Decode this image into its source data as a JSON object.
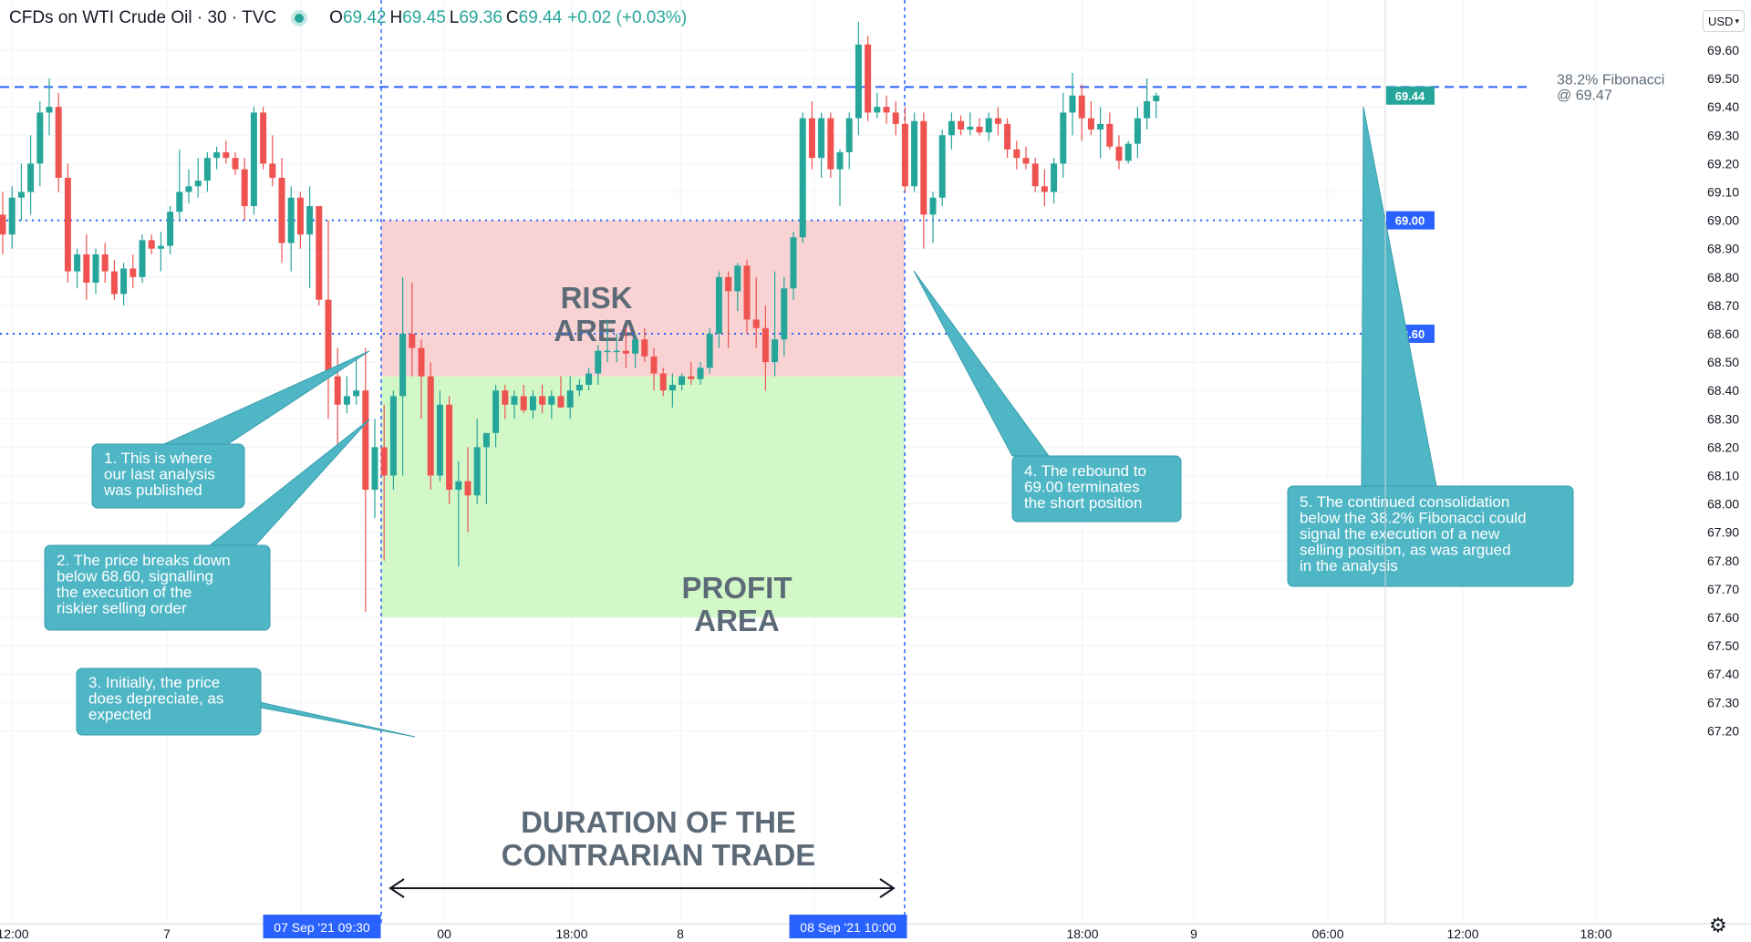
{
  "header": {
    "symbol_title": "CFDs on WTI Crude Oil · 30 · TVC",
    "open_label": "O",
    "open": "69.42",
    "high_label": "H",
    "high": "69.45",
    "low_label": "L",
    "low": "69.36",
    "close_label": "C",
    "close": "69.44",
    "change": "+0.02 (+0.03%)"
  },
  "currency_button": "USD",
  "settings_icon": "gear-icon",
  "colors": {
    "up": "#26a69a",
    "down": "#ef5350",
    "line": "#2962ff",
    "callout": "#4fb6c5",
    "risk": "#f9d3d3",
    "profit": "#d2f8c8",
    "zone_text": "#5d6b78"
  },
  "chart_data": {
    "type": "candlestick",
    "ylim": [
      67.1,
      69.75
    ],
    "y_ticks": [
      69.6,
      69.5,
      69.4,
      69.3,
      69.2,
      69.1,
      69.0,
      68.9,
      68.8,
      68.7,
      68.6,
      68.5,
      68.4,
      68.3,
      68.2,
      68.1,
      68.0,
      67.9,
      67.8,
      67.7,
      67.6,
      67.5,
      67.4,
      67.3,
      67.2
    ],
    "x_ticks": [
      "12:00",
      "7",
      "06:00",
      "07 Sep '21  09:30",
      "00",
      "18:00",
      "8",
      "06:00",
      "08 Sep '21  10:00",
      "18:00",
      "9",
      "06:00",
      "12:00",
      "18:00"
    ],
    "candles": [
      [
        69.02,
        69.1,
        68.88,
        68.95
      ],
      [
        68.95,
        69.12,
        68.9,
        69.08
      ],
      [
        69.08,
        69.2,
        69.0,
        69.1
      ],
      [
        69.1,
        69.3,
        69.02,
        69.2
      ],
      [
        69.2,
        69.42,
        69.12,
        69.38
      ],
      [
        69.38,
        69.5,
        69.3,
        69.4
      ],
      [
        69.4,
        69.45,
        69.1,
        69.15
      ],
      [
        69.15,
        69.2,
        68.78,
        68.82
      ],
      [
        68.82,
        68.9,
        68.76,
        68.88
      ],
      [
        68.88,
        68.95,
        68.72,
        68.78
      ],
      [
        68.78,
        68.9,
        68.74,
        68.88
      ],
      [
        68.88,
        68.92,
        68.78,
        68.82
      ],
      [
        68.82,
        68.86,
        68.72,
        68.74
      ],
      [
        68.74,
        68.85,
        68.7,
        68.83
      ],
      [
        68.83,
        68.88,
        68.76,
        68.8
      ],
      [
        68.8,
        68.95,
        68.78,
        68.93
      ],
      [
        68.93,
        68.95,
        68.88,
        68.9
      ],
      [
        68.9,
        68.96,
        68.82,
        68.91
      ],
      [
        68.91,
        69.05,
        68.88,
        69.03
      ],
      [
        69.03,
        69.25,
        69.0,
        69.1
      ],
      [
        69.1,
        69.18,
        69.06,
        69.12
      ],
      [
        69.12,
        69.22,
        69.08,
        69.14
      ],
      [
        69.14,
        69.24,
        69.1,
        69.22
      ],
      [
        69.22,
        69.26,
        69.18,
        69.24
      ],
      [
        69.24,
        69.28,
        69.2,
        69.22
      ],
      [
        69.22,
        69.24,
        69.16,
        69.18
      ],
      [
        69.18,
        69.22,
        69.0,
        69.05
      ],
      [
        69.05,
        69.4,
        69.02,
        69.38
      ],
      [
        69.38,
        69.4,
        69.18,
        69.2
      ],
      [
        69.2,
        69.3,
        69.12,
        69.15
      ],
      [
        69.15,
        69.22,
        68.85,
        68.92
      ],
      [
        68.92,
        69.12,
        68.82,
        69.08
      ],
      [
        69.08,
        69.1,
        68.9,
        68.95
      ],
      [
        68.95,
        69.12,
        68.76,
        69.05
      ],
      [
        69.05,
        69.05,
        68.7,
        68.72
      ],
      [
        68.72,
        69.0,
        68.3,
        68.45
      ],
      [
        68.45,
        68.55,
        68.2,
        68.35
      ],
      [
        68.35,
        68.45,
        68.32,
        68.38
      ],
      [
        68.38,
        68.52,
        68.35,
        68.4
      ],
      [
        68.4,
        68.55,
        67.62,
        68.05
      ],
      [
        68.05,
        68.3,
        67.95,
        68.2
      ],
      [
        68.2,
        68.35,
        67.8,
        68.1
      ],
      [
        68.1,
        68.4,
        68.05,
        68.38
      ],
      [
        68.38,
        68.8,
        68.1,
        68.6
      ],
      [
        68.6,
        68.78,
        68.45,
        68.55
      ],
      [
        68.55,
        68.58,
        68.3,
        68.45
      ],
      [
        68.45,
        68.5,
        68.05,
        68.1
      ],
      [
        68.1,
        68.4,
        68.08,
        68.35
      ],
      [
        68.35,
        68.38,
        68.0,
        68.05
      ],
      [
        68.05,
        68.15,
        67.78,
        68.08
      ],
      [
        68.08,
        68.2,
        67.9,
        68.03
      ],
      [
        68.03,
        68.3,
        68.0,
        68.2
      ],
      [
        68.2,
        68.25,
        68.0,
        68.25
      ],
      [
        68.25,
        68.42,
        68.2,
        68.4
      ],
      [
        68.4,
        68.42,
        68.3,
        68.35
      ],
      [
        68.35,
        68.4,
        68.3,
        68.38
      ],
      [
        68.38,
        68.42,
        68.32,
        68.33
      ],
      [
        68.33,
        68.4,
        68.3,
        68.38
      ],
      [
        68.38,
        68.42,
        68.32,
        68.35
      ],
      [
        68.35,
        68.4,
        68.3,
        68.38
      ],
      [
        68.38,
        68.45,
        68.34,
        68.34
      ],
      [
        68.34,
        68.45,
        68.3,
        68.4
      ],
      [
        68.4,
        68.44,
        68.38,
        68.42
      ],
      [
        68.42,
        68.48,
        68.4,
        68.46
      ],
      [
        68.46,
        68.56,
        68.42,
        68.54
      ],
      [
        68.54,
        68.65,
        68.5,
        68.54
      ],
      [
        68.54,
        68.6,
        68.5,
        68.54
      ],
      [
        68.54,
        68.62,
        68.48,
        68.53
      ],
      [
        68.53,
        68.6,
        68.48,
        68.58
      ],
      [
        68.58,
        68.62,
        68.5,
        68.52
      ],
      [
        68.52,
        68.55,
        68.4,
        68.46
      ],
      [
        68.46,
        68.48,
        68.38,
        68.4
      ],
      [
        68.4,
        68.46,
        68.34,
        68.42
      ],
      [
        68.42,
        68.46,
        68.4,
        68.45
      ],
      [
        68.45,
        68.5,
        68.42,
        68.44
      ],
      [
        68.44,
        68.5,
        68.42,
        68.48
      ],
      [
        68.48,
        68.62,
        68.46,
        68.6
      ],
      [
        68.6,
        68.82,
        68.55,
        68.8
      ],
      [
        68.8,
        68.82,
        68.55,
        68.75
      ],
      [
        68.75,
        68.85,
        68.68,
        68.84
      ],
      [
        68.84,
        68.86,
        68.6,
        68.65
      ],
      [
        68.65,
        68.8,
        68.55,
        68.62
      ],
      [
        68.62,
        68.7,
        68.4,
        68.5
      ],
      [
        68.5,
        68.82,
        68.45,
        68.58
      ],
      [
        68.58,
        68.8,
        68.52,
        68.76
      ],
      [
        68.76,
        68.96,
        68.72,
        68.94
      ],
      [
        68.94,
        69.38,
        68.92,
        69.36
      ],
      [
        69.36,
        69.42,
        69.18,
        69.22
      ],
      [
        69.22,
        69.38,
        69.15,
        69.36
      ],
      [
        69.36,
        69.38,
        69.15,
        69.18
      ],
      [
        69.18,
        69.25,
        69.05,
        69.24
      ],
      [
        69.24,
        69.38,
        69.18,
        69.36
      ],
      [
        69.36,
        69.7,
        69.3,
        69.62
      ],
      [
        69.62,
        69.65,
        69.35,
        69.38
      ],
      [
        69.38,
        69.45,
        69.36,
        69.4
      ],
      [
        69.4,
        69.44,
        69.34,
        69.38
      ],
      [
        69.38,
        69.42,
        69.3,
        69.34
      ],
      [
        69.34,
        69.4,
        69.1,
        69.12
      ],
      [
        69.12,
        69.38,
        69.1,
        69.35
      ],
      [
        69.35,
        69.38,
        68.9,
        69.02
      ],
      [
        69.02,
        69.1,
        68.92,
        69.08
      ],
      [
        69.08,
        69.32,
        69.05,
        69.3
      ],
      [
        69.3,
        69.38,
        69.25,
        69.35
      ],
      [
        69.35,
        69.37,
        69.3,
        69.32
      ],
      [
        69.32,
        69.38,
        69.3,
        69.33
      ],
      [
        69.33,
        69.36,
        69.3,
        69.31
      ],
      [
        69.31,
        69.38,
        69.28,
        69.36
      ],
      [
        69.36,
        69.4,
        69.3,
        69.34
      ],
      [
        69.34,
        69.36,
        69.22,
        69.25
      ],
      [
        69.25,
        69.28,
        69.18,
        69.22
      ],
      [
        69.22,
        69.26,
        69.18,
        69.2
      ],
      [
        69.2,
        69.22,
        69.1,
        69.12
      ],
      [
        69.12,
        69.18,
        69.05,
        69.1
      ],
      [
        69.1,
        69.22,
        69.06,
        69.2
      ],
      [
        69.2,
        69.45,
        69.15,
        69.38
      ],
      [
        69.38,
        69.52,
        69.3,
        69.44
      ],
      [
        69.44,
        69.48,
        69.28,
        69.36
      ],
      [
        69.36,
        69.42,
        69.3,
        69.32
      ],
      [
        69.32,
        69.4,
        69.22,
        69.34
      ],
      [
        69.34,
        69.38,
        69.25,
        69.26
      ],
      [
        69.26,
        69.3,
        69.18,
        69.21
      ],
      [
        69.21,
        69.28,
        69.2,
        69.27
      ],
      [
        69.27,
        69.4,
        69.22,
        69.36
      ],
      [
        69.36,
        69.5,
        69.32,
        69.42
      ],
      [
        69.42,
        69.45,
        69.36,
        69.44
      ]
    ],
    "hlines": [
      {
        "value": 69.47,
        "style": "dashed",
        "label": "38.2% Fibonacci\n@ 69.47"
      },
      {
        "value": 69.0,
        "style": "dotted",
        "badge": "69.00"
      },
      {
        "value": 68.6,
        "style": "dotted",
        "badge": "68.60"
      }
    ],
    "current_price_badge": "69.44",
    "zones": [
      {
        "name": "risk",
        "from": 68.45,
        "to": 69.0,
        "label": "RISK\nAREA"
      },
      {
        "name": "profit",
        "from": 67.6,
        "to": 68.45,
        "label": "PROFIT\nAREA"
      }
    ],
    "duration_label": "DURATION OF THE\nCONTRARIAN TRADE",
    "callouts": [
      "1. This is where\nour last analysis\nwas published",
      "2. The price breaks down\nbelow 68.60, signalling\nthe execution of the\nriskier selling order",
      "3. Initially, the price\ndoes depreciate, as\nexpected",
      "4. The rebound to\n69.00 terminates\nthe short position",
      "5. The continued consolidation\nbelow the 38.2% Fibonacci could\nsignal the execution of a new\nselling position, as was argued\nin the analysis"
    ]
  }
}
